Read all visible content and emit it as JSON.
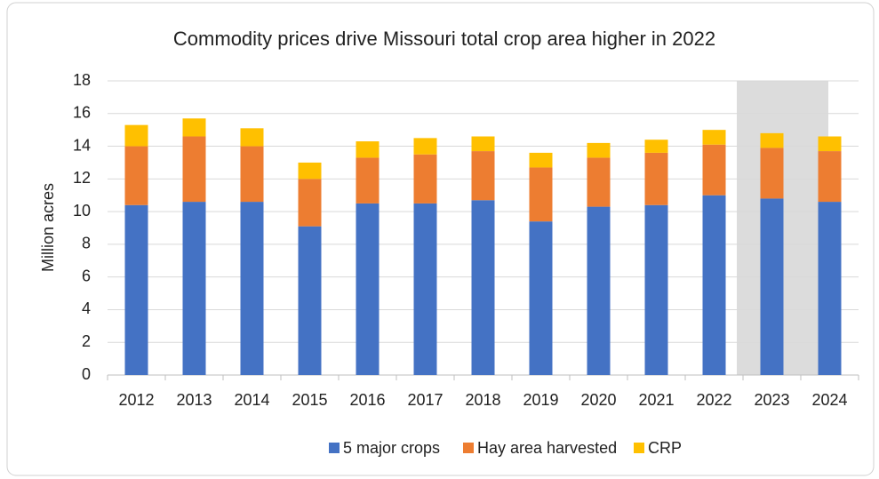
{
  "chart_data": {
    "type": "stacked_bar",
    "title": "Commodity prices drive Missouri total crop area higher in 2022",
    "y_label": "Million acres",
    "categories": [
      "2012",
      "2013",
      "2014",
      "2015",
      "2016",
      "2017",
      "2018",
      "2019",
      "2020",
      "2021",
      "2022",
      "2023",
      "2024"
    ],
    "series": [
      {
        "name": "5 major crops",
        "color": "#4472c4",
        "values": [
          10.4,
          10.6,
          10.6,
          9.1,
          10.5,
          10.5,
          10.7,
          9.4,
          10.3,
          10.4,
          11.0,
          10.8,
          10.6
        ]
      },
      {
        "name": "Hay area harvested",
        "color": "#ed7d31",
        "values": [
          3.6,
          4.0,
          3.4,
          2.9,
          2.8,
          3.0,
          3.0,
          3.3,
          3.0,
          3.2,
          3.1,
          3.1,
          3.1
        ]
      },
      {
        "name": "CRP",
        "color": "#ffc000",
        "values": [
          1.3,
          1.1,
          1.1,
          1.0,
          1.0,
          1.0,
          0.9,
          0.9,
          0.9,
          0.8,
          0.9,
          0.9,
          0.9
        ]
      }
    ],
    "ylim": [
      0,
      18
    ],
    "yticks": [
      0,
      2,
      4,
      6,
      8,
      10,
      12,
      14,
      16,
      18
    ],
    "grid": true,
    "legend": "bottom"
  }
}
